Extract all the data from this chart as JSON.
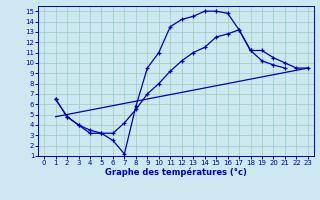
{
  "title": "Graphe des températures (°c)",
  "bg_color": "#cde8f0",
  "line_color": "#0000bb",
  "grid_color": "#99ccbb",
  "xlim": [
    -0.5,
    23.5
  ],
  "ylim": [
    1,
    15.5
  ],
  "xticks": [
    0,
    1,
    2,
    3,
    4,
    5,
    6,
    7,
    8,
    9,
    10,
    11,
    12,
    13,
    14,
    15,
    16,
    17,
    18,
    19,
    20,
    21,
    22,
    23
  ],
  "yticks": [
    1,
    2,
    3,
    4,
    5,
    6,
    7,
    8,
    9,
    10,
    11,
    12,
    13,
    14,
    15
  ],
  "line1_x": [
    1,
    2,
    3,
    4,
    5,
    6,
    7,
    8,
    9,
    10,
    11,
    12,
    13,
    14,
    15,
    16,
    17,
    18,
    19,
    20,
    21
  ],
  "line1_y": [
    6.5,
    4.8,
    4.0,
    3.2,
    3.2,
    2.5,
    1.2,
    5.8,
    9.5,
    11.0,
    13.5,
    14.2,
    14.5,
    15.0,
    15.0,
    14.8,
    13.2,
    11.2,
    10.2,
    9.8,
    9.5
  ],
  "line2_x": [
    1,
    2,
    3,
    4,
    5,
    6,
    7,
    8,
    9,
    10,
    11,
    12,
    13,
    14,
    15,
    16,
    17,
    18,
    19,
    20,
    21,
    22,
    23
  ],
  "line2_y": [
    6.5,
    4.8,
    4.0,
    3.5,
    3.2,
    3.2,
    4.2,
    5.5,
    7.0,
    8.0,
    9.2,
    10.2,
    11.0,
    11.5,
    12.5,
    12.8,
    13.2,
    11.2,
    11.2,
    10.5,
    10.0,
    9.5,
    9.5
  ],
  "line3_x": [
    1,
    23
  ],
  "line3_y": [
    4.8,
    9.5
  ],
  "tick_labelsize": 5,
  "xlabel_fontsize": 6,
  "lw": 0.9,
  "marker_size": 3.5
}
